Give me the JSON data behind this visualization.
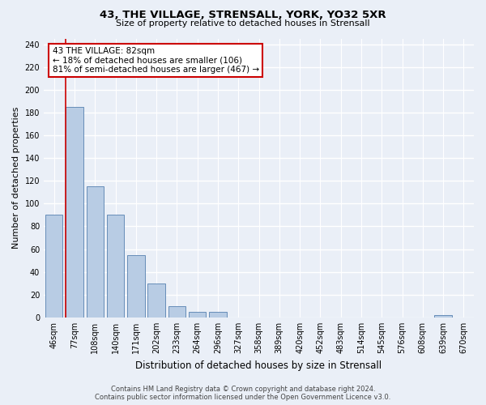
{
  "title": "43, THE VILLAGE, STRENSALL, YORK, YO32 5XR",
  "subtitle": "Size of property relative to detached houses in Strensall",
  "xlabel": "Distribution of detached houses by size in Strensall",
  "ylabel": "Number of detached properties",
  "footer_line1": "Contains HM Land Registry data © Crown copyright and database right 2024.",
  "footer_line2": "Contains public sector information licensed under the Open Government Licence v3.0.",
  "categories": [
    "46sqm",
    "77sqm",
    "108sqm",
    "140sqm",
    "171sqm",
    "202sqm",
    "233sqm",
    "264sqm",
    "296sqm",
    "327sqm",
    "358sqm",
    "389sqm",
    "420sqm",
    "452sqm",
    "483sqm",
    "514sqm",
    "545sqm",
    "576sqm",
    "608sqm",
    "639sqm",
    "670sqm"
  ],
  "values": [
    90,
    185,
    115,
    90,
    55,
    30,
    10,
    5,
    5,
    0,
    0,
    0,
    0,
    0,
    0,
    0,
    0,
    0,
    0,
    2,
    0
  ],
  "bar_color": "#b8cce4",
  "bar_edge_color": "#5580b0",
  "highlight_line_color": "#cc0000",
  "highlight_bar_index": 1,
  "ylim": [
    0,
    245
  ],
  "yticks": [
    0,
    20,
    40,
    60,
    80,
    100,
    120,
    140,
    160,
    180,
    200,
    220,
    240
  ],
  "annotation_text": "43 THE VILLAGE: 82sqm\n← 18% of detached houses are smaller (106)\n81% of semi-detached houses are larger (467) →",
  "annotation_box_facecolor": "#ffffff",
  "annotation_box_edgecolor": "#cc0000",
  "bg_color": "#eaeff7",
  "plot_bg_color": "#eaeff7",
  "grid_color": "#ffffff",
  "title_fontsize": 9.5,
  "subtitle_fontsize": 8,
  "ylabel_fontsize": 8,
  "xlabel_fontsize": 8.5,
  "tick_fontsize": 7,
  "footer_fontsize": 6,
  "annotation_fontsize": 7.5
}
